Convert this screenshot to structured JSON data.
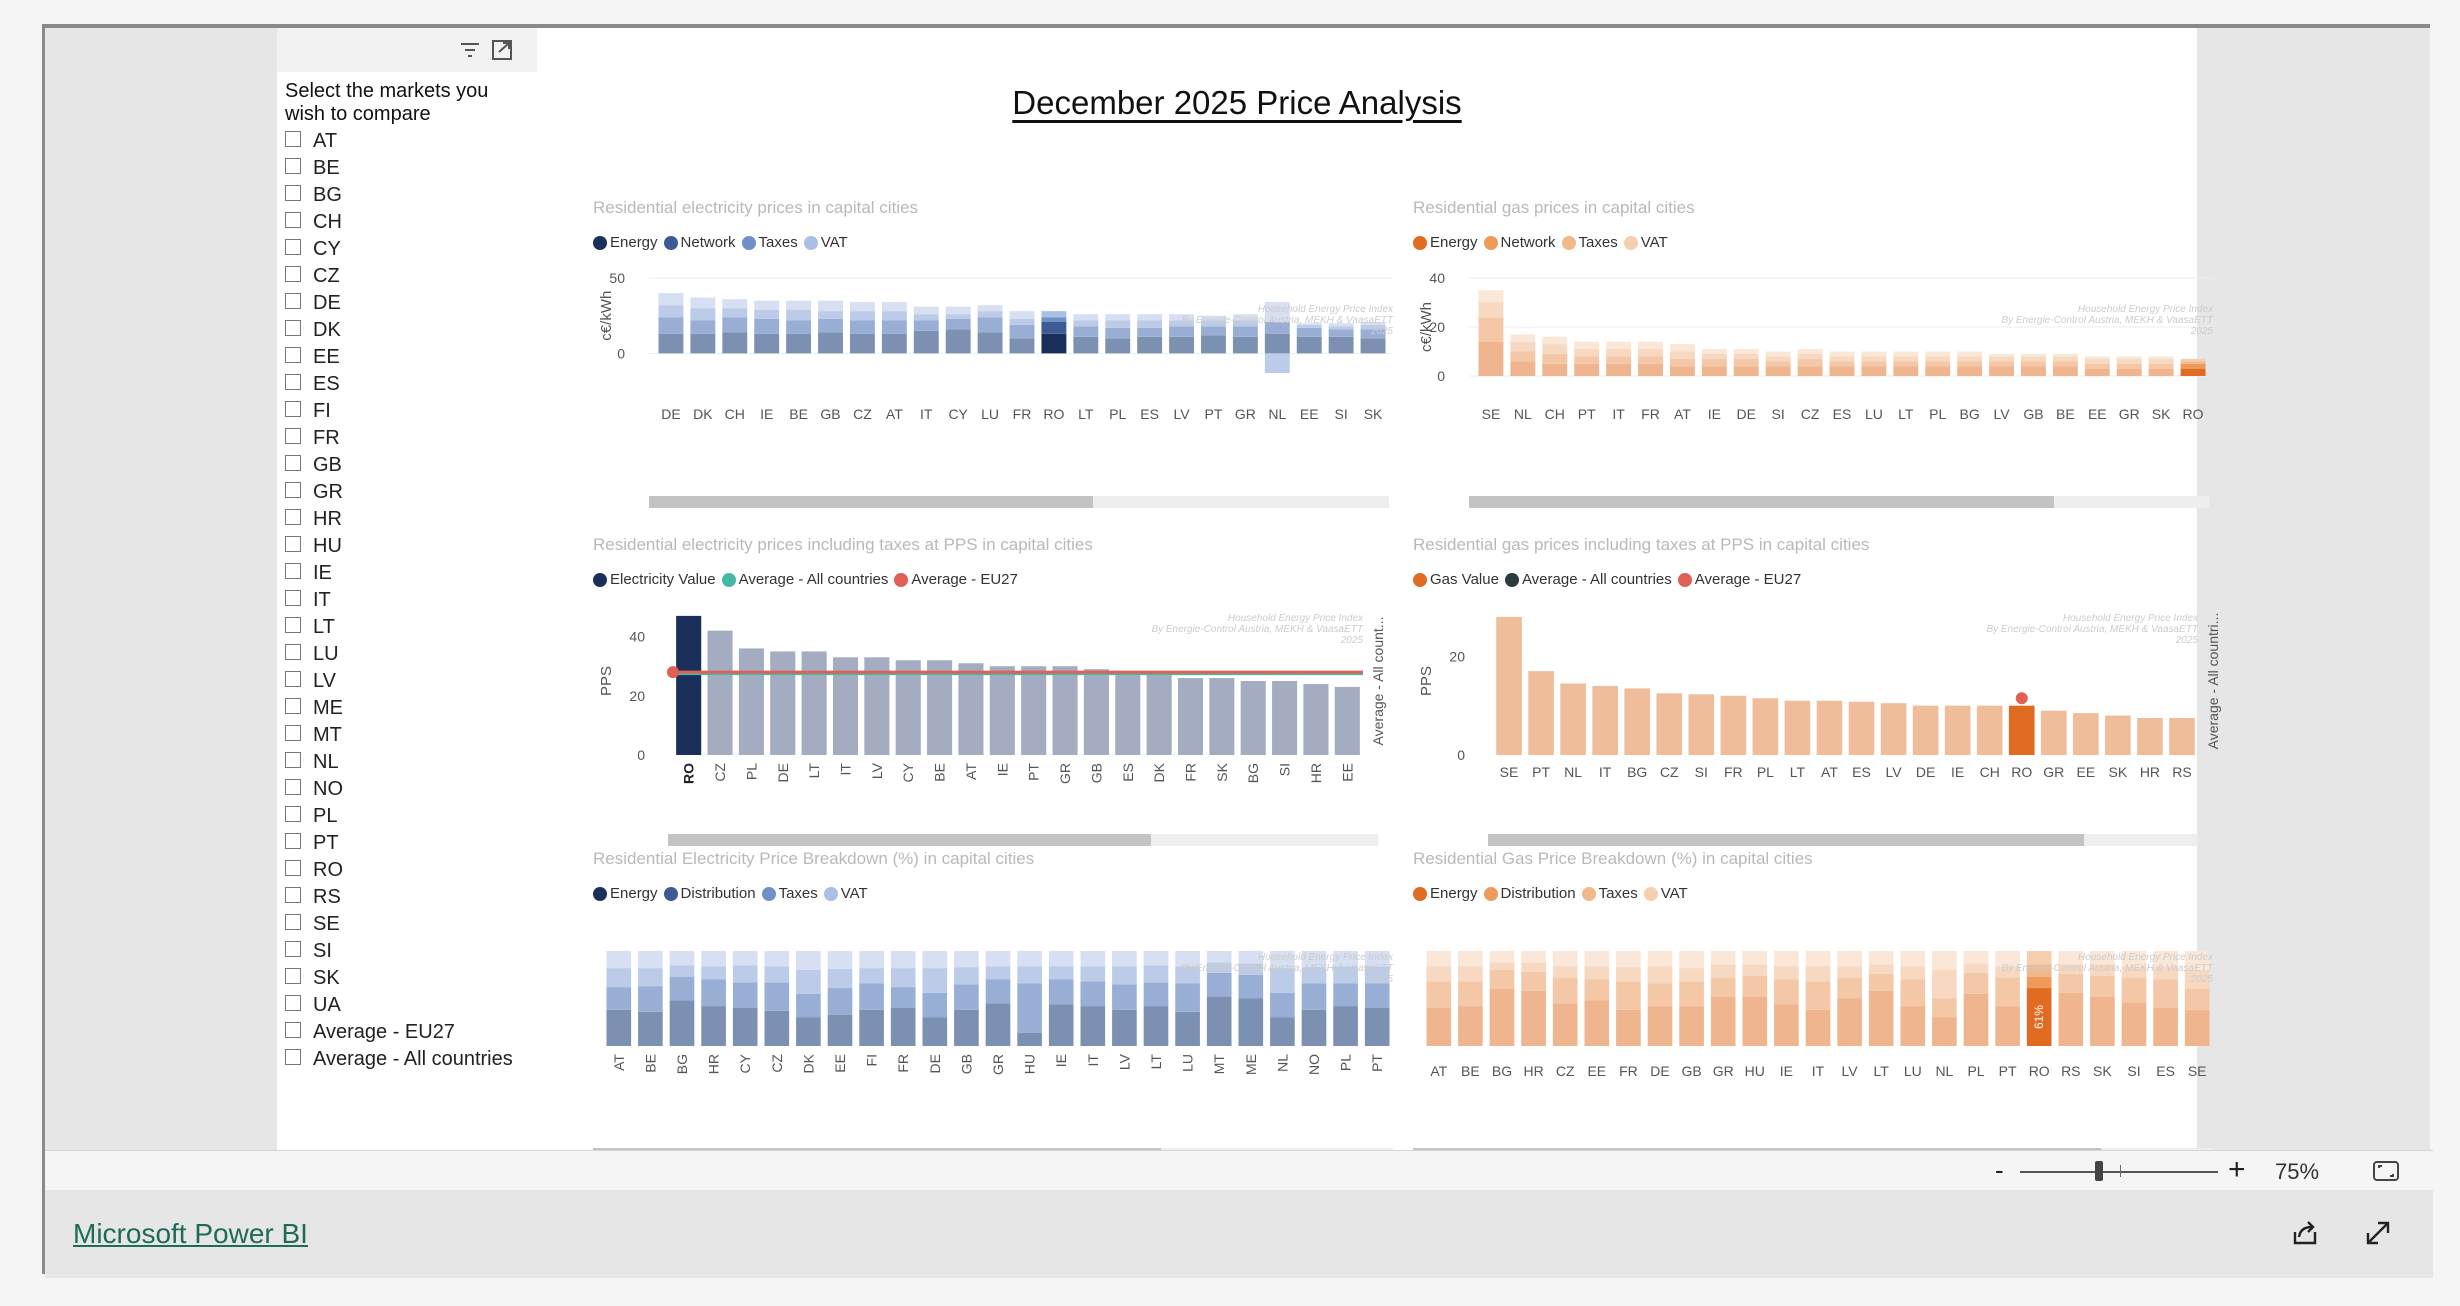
{
  "report": {
    "title": "December 2025 Price Analysis",
    "zoom": "75%",
    "zoom_level": 0.4,
    "brand_link": "Microsoft Power BI"
  },
  "icons": [
    "filter-icon",
    "focus-mode-icon",
    "fit-to-page-icon",
    "share-icon",
    "expand-icon"
  ],
  "slicer": {
    "title": "Select the markets you wish to compare",
    "items": [
      "AT",
      "BE",
      "BG",
      "CH",
      "CY",
      "CZ",
      "DE",
      "DK",
      "EE",
      "ES",
      "FI",
      "FR",
      "GB",
      "GR",
      "HR",
      "HU",
      "IE",
      "IT",
      "LT",
      "LU",
      "LV",
      "ME",
      "MT",
      "NL",
      "NO",
      "PL",
      "PT",
      "RO",
      "RS",
      "SE",
      "SI",
      "SK",
      "UA",
      "Average - EU27",
      "Average - All countries"
    ]
  },
  "watermark": {
    "lines": [
      "Household Energy Price Index",
      "By Energie-Control Austria, MEKH & VaasaETT",
      "2025"
    ]
  },
  "colors": {
    "elec_energy": "#1b2f5b",
    "elec_network": "#3d5a94",
    "elec_taxes": "#6f8fc8",
    "elec_vat": "#a9bfe6",
    "elec_bar_energy": "#7c91b1",
    "elec_bar_network": "#98aed4",
    "elec_bar_taxes": "#bccbe8",
    "elec_bar_vat": "#d6e0f2",
    "gas_energy": "#e26b22",
    "gas_network": "#ed9a5a",
    "gas_taxes": "#f1b88a",
    "gas_vat": "#f6cfae",
    "gas_bar_energy": "#efb58e",
    "gas_bar_network": "#f4c8a6",
    "gas_bar_taxes": "#f7d8c0",
    "gas_bar_vat": "#fae7d8",
    "pps_elec_bar": "#a3acc0",
    "pps_elec_highlight": "#1b2f5b",
    "avg_all": "#44b9a6",
    "avg_eu": "#e06055",
    "pps_gas_bar": "#efbd9a",
    "pps_gas_highlight": "#e06a20",
    "gas_avg_all": "#2b3a3d"
  },
  "charts": [
    {
      "id": "elec-price",
      "title": "Residential electricity prices in capital cities",
      "legend": [
        {
          "label": "Energy",
          "color": "#1b2f5b"
        },
        {
          "label": "Network",
          "color": "#3d5a94"
        },
        {
          "label": "Taxes",
          "color": "#6f8fc8"
        },
        {
          "label": "VAT",
          "color": "#a9bfe6"
        }
      ],
      "ylabel": "c€/kWh",
      "yticks": [
        "50",
        "0"
      ],
      "scroll": 0.6
    },
    {
      "id": "gas-price",
      "title": "Residential gas prices in capital cities",
      "legend": [
        {
          "label": "Energy",
          "color": "#e26b22"
        },
        {
          "label": "Network",
          "color": "#ed9a5a"
        },
        {
          "label": "Taxes",
          "color": "#f1b88a"
        },
        {
          "label": "VAT",
          "color": "#f6cfae"
        }
      ],
      "ylabel": "c€/kWh",
      "yticks": [
        "40",
        "20",
        "0"
      ],
      "scroll": 0.79
    },
    {
      "id": "elec-pps",
      "title": "Residential electricity prices including taxes at PPS in capital cities",
      "legend": [
        {
          "label": "Electricity Value",
          "color": "#1b2f5b"
        },
        {
          "label": "Average - All countries",
          "color": "#44b9a6"
        },
        {
          "label": "Average - EU27",
          "color": "#e06055"
        }
      ],
      "ylabel": "PPS",
      "y2label": "Average - All count...",
      "yticks": [
        "40",
        "20",
        "0"
      ],
      "scroll": 0.68
    },
    {
      "id": "gas-pps",
      "title": "Residential gas prices including taxes at PPS in capital cities",
      "legend": [
        {
          "label": "Gas Value",
          "color": "#e26b22"
        },
        {
          "label": "Average - All countries",
          "color": "#2b3a3d"
        },
        {
          "label": "Average - EU27",
          "color": "#e06055"
        }
      ],
      "ylabel": "PPS",
      "y2label": "Average - All countri...",
      "yticks": [
        "20",
        "0"
      ],
      "scroll": 0.84
    },
    {
      "id": "elec-breakdown",
      "title": "Residential Electricity Price Breakdown (%) in capital cities",
      "legend": [
        {
          "label": "Energy",
          "color": "#1b2f5b"
        },
        {
          "label": "Distribution",
          "color": "#3d5a94"
        },
        {
          "label": "Taxes",
          "color": "#6f8fc8"
        },
        {
          "label": "VAT",
          "color": "#a9bfe6"
        }
      ],
      "scroll": 0.71
    },
    {
      "id": "gas-breakdown",
      "title": "Residential Gas Price Breakdown (%) in capital cities",
      "legend": [
        {
          "label": "Energy",
          "color": "#e26b22"
        },
        {
          "label": "Distribution",
          "color": "#ed9a5a"
        },
        {
          "label": "Taxes",
          "color": "#f1b88a"
        },
        {
          "label": "VAT",
          "color": "#f6cfae"
        }
      ],
      "scroll": 0.86
    }
  ],
  "chart_data": [
    {
      "type": "bar",
      "title": "Residential electricity prices in capital cities",
      "ylabel": "c€/kWh",
      "ylim": [
        -15,
        50
      ],
      "stacked": true,
      "categories": [
        "DE",
        "DK",
        "CH",
        "IE",
        "BE",
        "GB",
        "CZ",
        "AT",
        "IT",
        "CY",
        "LU",
        "FR",
        "RO",
        "LT",
        "PL",
        "ES",
        "LV",
        "PT",
        "GR",
        "NL",
        "EE",
        "SI",
        "SK"
      ],
      "highlight": "RO",
      "series": [
        {
          "name": "Energy",
          "values": [
            13,
            13,
            14,
            13,
            13,
            14,
            13,
            13,
            15,
            16,
            14,
            10,
            13,
            11,
            10,
            11,
            11,
            12,
            11,
            13,
            11,
            11,
            10
          ]
        },
        {
          "name": "Network",
          "values": [
            11,
            9,
            10,
            10,
            9,
            9,
            9,
            9,
            7,
            7,
            10,
            9,
            8,
            7,
            7,
            6,
            7,
            6,
            7,
            8,
            6,
            5,
            6
          ]
        },
        {
          "name": "Taxes",
          "values": [
            8,
            8,
            6,
            6,
            7,
            5,
            6,
            6,
            4,
            3,
            4,
            4,
            3,
            4,
            5,
            5,
            4,
            4,
            4,
            -13,
            2,
            2,
            3
          ]
        },
        {
          "name": "VAT",
          "values": [
            8,
            7,
            6,
            6,
            6,
            7,
            6,
            6,
            5,
            5,
            4,
            5,
            4,
            4,
            4,
            4,
            4,
            3,
            4,
            13,
            1,
            2,
            2
          ]
        }
      ]
    },
    {
      "type": "bar",
      "title": "Residential gas prices in capital cities",
      "ylabel": "c€/kWh",
      "ylim": [
        0,
        40
      ],
      "stacked": true,
      "categories": [
        "SE",
        "NL",
        "CH",
        "PT",
        "IT",
        "FR",
        "AT",
        "IE",
        "DE",
        "SI",
        "CZ",
        "ES",
        "LU",
        "LT",
        "PL",
        "BG",
        "LV",
        "GB",
        "BE",
        "EE",
        "GR",
        "SK",
        "RO"
      ],
      "highlight": "RO",
      "series": [
        {
          "name": "Energy",
          "values": [
            14,
            6,
            5,
            5,
            5,
            5,
            4,
            4,
            4,
            4,
            4,
            4,
            4,
            4,
            4,
            4,
            4,
            4,
            4,
            3,
            3,
            3,
            3
          ]
        },
        {
          "name": "Network",
          "values": [
            10,
            4,
            4,
            3,
            3,
            3,
            3,
            3,
            3,
            2,
            3,
            2,
            2,
            2,
            2,
            2,
            2,
            2,
            2,
            2,
            2,
            2,
            2
          ]
        },
        {
          "name": "Taxes",
          "values": [
            6,
            4,
            4,
            3,
            3,
            3,
            3,
            2,
            2,
            2,
            2,
            2,
            2,
            2,
            2,
            2,
            2,
            2,
            2,
            2,
            2,
            2,
            1
          ]
        },
        {
          "name": "VAT",
          "values": [
            5,
            3,
            3,
            3,
            3,
            3,
            3,
            2,
            2,
            2,
            2,
            2,
            2,
            2,
            2,
            2,
            1,
            1,
            1,
            1,
            1,
            1,
            1
          ]
        }
      ]
    },
    {
      "type": "bar",
      "title": "Residential electricity prices including taxes at PPS in capital cities",
      "ylabel": "PPS",
      "ylim": [
        0,
        50
      ],
      "categories": [
        "RO",
        "CZ",
        "PL",
        "DE",
        "LT",
        "IT",
        "LV",
        "CY",
        "BE",
        "AT",
        "IE",
        "PT",
        "GR",
        "GB",
        "ES",
        "DK",
        "FR",
        "SK",
        "BG",
        "SI",
        "HR",
        "EE"
      ],
      "highlight": "RO",
      "series": [
        {
          "name": "Electricity Value",
          "values": [
            47,
            42,
            36,
            35,
            35,
            33,
            33,
            32,
            32,
            31,
            30,
            30,
            30,
            29,
            28,
            28,
            26,
            26,
            25,
            25,
            24,
            23
          ]
        }
      ],
      "reference_lines": [
        {
          "name": "Average - All countries",
          "value": 27.5
        },
        {
          "name": "Average - EU27",
          "value": 28
        }
      ]
    },
    {
      "type": "bar",
      "title": "Residential gas prices including taxes at PPS in capital cities",
      "ylabel": "PPS",
      "ylim": [
        0,
        30
      ],
      "categories": [
        "SE",
        "PT",
        "NL",
        "IT",
        "BG",
        "CZ",
        "SI",
        "FR",
        "PL",
        "LT",
        "AT",
        "ES",
        "LV",
        "DE",
        "IE",
        "CH",
        "RO",
        "GR",
        "EE",
        "SK",
        "HR",
        "RS"
      ],
      "highlight": "RO",
      "series": [
        {
          "name": "Gas Value",
          "values": [
            28,
            17,
            14.5,
            14,
            13.5,
            12.5,
            12.3,
            12,
            11.5,
            11,
            11,
            10.8,
            10.5,
            10,
            10,
            10,
            10,
            9,
            8.5,
            8,
            7.5,
            7.5
          ]
        }
      ],
      "markers": [
        {
          "category": "RO",
          "name": "Average - EU27",
          "value": 11.5
        }
      ]
    },
    {
      "type": "bar",
      "title": "Residential Electricity Price Breakdown (%) in capital cities",
      "stacked": true,
      "ylim": [
        0,
        100
      ],
      "categories": [
        "AT",
        "BE",
        "BG",
        "HR",
        "CY",
        "CZ",
        "DK",
        "EE",
        "FI",
        "FR",
        "DE",
        "GB",
        "GR",
        "HU",
        "IE",
        "IT",
        "LV",
        "LT",
        "LU",
        "MT",
        "ME",
        "NL",
        "NO",
        "PL",
        "PT"
      ],
      "series": [
        {
          "name": "Energy",
          "values": [
            38,
            36,
            48,
            42,
            40,
            37,
            30,
            33,
            38,
            40,
            30,
            38,
            45,
            14,
            44,
            42,
            38,
            42,
            36,
            52,
            50,
            30,
            38,
            42,
            40
          ]
        },
        {
          "name": "Distribution",
          "values": [
            24,
            27,
            25,
            28,
            27,
            30,
            25,
            28,
            28,
            22,
            26,
            27,
            25,
            52,
            26,
            26,
            27,
            25,
            30,
            25,
            25,
            26,
            28,
            24,
            26
          ]
        },
        {
          "name": "Taxes",
          "values": [
            20,
            19,
            12,
            14,
            18,
            17,
            25,
            20,
            16,
            20,
            26,
            18,
            14,
            18,
            14,
            16,
            19,
            18,
            18,
            11,
            12,
            26,
            17,
            18,
            18
          ]
        },
        {
          "name": "VAT",
          "values": [
            18,
            18,
            15,
            16,
            15,
            16,
            20,
            19,
            18,
            18,
            18,
            17,
            16,
            16,
            16,
            16,
            16,
            15,
            16,
            12,
            13,
            18,
            17,
            16,
            16
          ]
        }
      ]
    },
    {
      "type": "bar",
      "title": "Residential Gas Price Breakdown (%) in capital cities",
      "stacked": true,
      "ylim": [
        0,
        100
      ],
      "categories": [
        "AT",
        "BE",
        "BG",
        "HR",
        "CZ",
        "EE",
        "FR",
        "DE",
        "GB",
        "GR",
        "HU",
        "IE",
        "IT",
        "LV",
        "LT",
        "LU",
        "NL",
        "PL",
        "PT",
        "RO",
        "RS",
        "SK",
        "SI",
        "ES",
        "SE"
      ],
      "highlight": "RO",
      "data_labels": [
        {
          "category": "RO",
          "text": "61%"
        }
      ],
      "series": [
        {
          "name": "Energy",
          "values": [
            40,
            42,
            60,
            58,
            45,
            48,
            38,
            42,
            42,
            52,
            52,
            44,
            38,
            50,
            58,
            42,
            30,
            55,
            42,
            61,
            56,
            52,
            46,
            40,
            38
          ]
        },
        {
          "name": "Distribution",
          "values": [
            28,
            26,
            20,
            20,
            27,
            22,
            30,
            24,
            26,
            20,
            22,
            26,
            30,
            22,
            18,
            28,
            20,
            22,
            30,
            12,
            20,
            22,
            26,
            30,
            22
          ]
        },
        {
          "name": "Taxes",
          "values": [
            16,
            16,
            8,
            10,
            12,
            14,
            15,
            18,
            14,
            14,
            12,
            14,
            16,
            12,
            10,
            14,
            30,
            10,
            12,
            13,
            10,
            12,
            12,
            14,
            20
          ]
        },
        {
          "name": "VAT",
          "values": [
            16,
            16,
            12,
            12,
            16,
            16,
            17,
            16,
            18,
            14,
            14,
            16,
            16,
            16,
            14,
            16,
            20,
            13,
            16,
            14,
            14,
            14,
            16,
            16,
            20
          ]
        }
      ]
    }
  ]
}
